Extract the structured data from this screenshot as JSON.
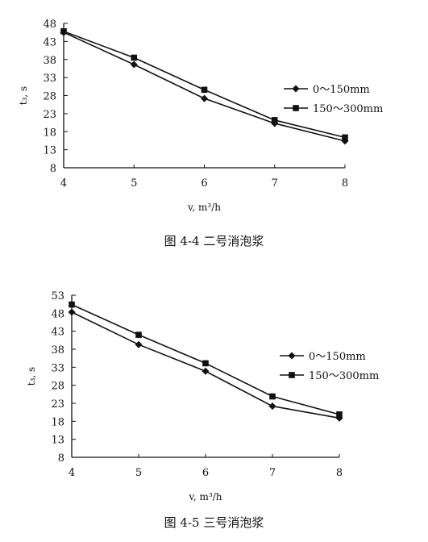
{
  "chart_data": [
    {
      "type": "line",
      "title": "",
      "xlabel": "v, m³/h",
      "ylabel": "t₃, s",
      "x": [
        4,
        5,
        6,
        7,
        8
      ],
      "xticks": [
        "4",
        "5",
        "6",
        "7",
        "8"
      ],
      "yticks": [
        "8",
        "13",
        "18",
        "23",
        "28",
        "33",
        "38",
        "43",
        "48"
      ],
      "ylim": [
        8,
        48
      ],
      "grid": false,
      "legend_position": "right",
      "series": [
        {
          "name": "0～150mm",
          "marker": "diamond",
          "values": [
            45.5,
            36.6,
            27.2,
            20.3,
            15.4
          ]
        },
        {
          "name": "150～300mm",
          "marker": "square",
          "values": [
            45.8,
            38.5,
            29.6,
            21.2,
            16.4
          ]
        }
      ],
      "caption": "图 4-4  二号消泡浆"
    },
    {
      "type": "line",
      "title": "",
      "xlabel": "v, m³/h",
      "ylabel": "t₃, s",
      "x": [
        4,
        5,
        6,
        7,
        8
      ],
      "xticks": [
        "4",
        "5",
        "6",
        "7",
        "8"
      ],
      "yticks": [
        "8",
        "13",
        "18",
        "23",
        "28",
        "33",
        "38",
        "43",
        "48",
        "53"
      ],
      "ylim": [
        8,
        53
      ],
      "grid": false,
      "legend_position": "right",
      "series": [
        {
          "name": "0～150mm",
          "marker": "diamond",
          "values": [
            48.3,
            39.3,
            31.9,
            22.2,
            18.9
          ]
        },
        {
          "name": "150～300mm",
          "marker": "square",
          "values": [
            50.4,
            42.0,
            34.1,
            24.9,
            19.9
          ]
        }
      ],
      "caption": "图 4-5 三号消泡浆"
    }
  ]
}
